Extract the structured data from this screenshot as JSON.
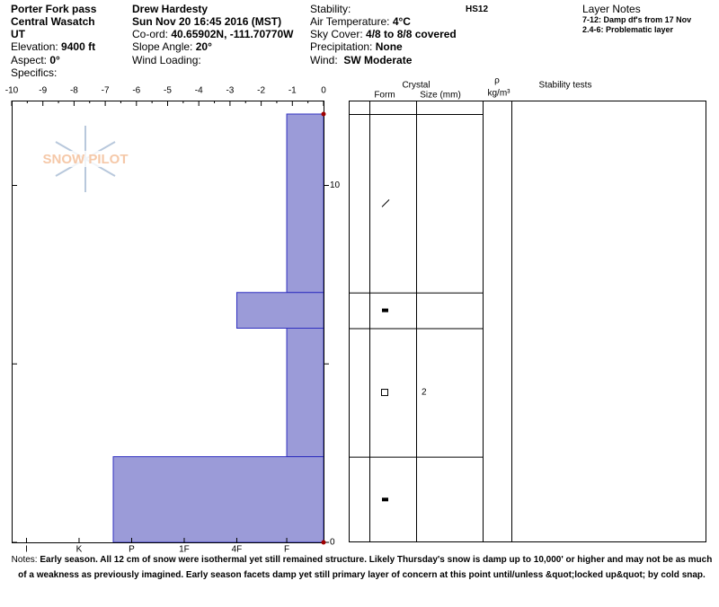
{
  "header": {
    "location": "Porter Fork pass",
    "range": "Central Wasatch",
    "state": "UT",
    "elevation_label": "Elevation:",
    "elevation": "9400 ft",
    "aspect_label": "Aspect:",
    "aspect": "0°",
    "specifics_label": "Specifics:",
    "observer": "Drew Hardesty",
    "date": "Sun Nov 20 16:45 2016 (MST)",
    "coord_label": "Co-ord:",
    "coord": "40.65902N, -111.70770W",
    "slope_label": "Slope Angle:",
    "slope": "20°",
    "wind_loading_label": "Wind Loading:",
    "stability_label": "Stability:",
    "air_temp_label": "Air Temperature:",
    "air_temp": "4°C",
    "sky_label": "Sky Cover:",
    "sky": "4/8 to 8/8 covered",
    "precip_label": "Precipitation:",
    "precip": "None",
    "wind_label": "Wind:",
    "wind": "SW Moderate",
    "hs": "HS12",
    "layer_notes_title": "Layer Notes",
    "layer_notes": [
      "7-12: Damp df's from 17 Nov",
      "2.4-6: Problematic layer"
    ]
  },
  "chart_data": {
    "type": "snow_profile",
    "logo": "SNOW PILOT",
    "xlim": [
      -10,
      0
    ],
    "xticks": [
      -10,
      -9,
      -8,
      -7,
      -6,
      -5,
      -4,
      -3,
      -2,
      -1,
      0
    ],
    "ylim": [
      0,
      12
    ],
    "yticks": [
      0,
      10
    ],
    "minor_yticks": [
      5
    ],
    "hardness_lim": [
      0,
      6
    ],
    "hardness_ticks": [
      {
        "value": 5.65,
        "label": "I"
      },
      {
        "value": 4.65,
        "label": "K"
      },
      {
        "value": 3.65,
        "label": "P"
      },
      {
        "value": 2.65,
        "label": "1F"
      },
      {
        "value": 1.65,
        "label": "4F"
      },
      {
        "value": 0.7,
        "label": "F"
      }
    ],
    "color": "#9b9bd8",
    "layers": [
      {
        "top": 12,
        "bottom": 7,
        "hardness": 0.7
      },
      {
        "top": 7,
        "bottom": 6,
        "hardness": 1.65
      },
      {
        "top": 6,
        "bottom": 2.4,
        "hardness": 0.7,
        "size": 2
      },
      {
        "top": 2.4,
        "bottom": 0,
        "hardness": 4.0
      }
    ],
    "table_headers": {
      "crystal": "Crystal",
      "form": "Form",
      "size": "Size (mm)",
      "rho": "ρ",
      "density": "kg/m³",
      "stability": "Stability tests"
    }
  },
  "notes": {
    "label": "Notes:",
    "text": "Early season.  All 12 cm of snow were isothermal yet still remained structure.  Likely Thursday's snow is damp up to 10,000' or higher and may not be as much of a weakness as previously imagined.  Early season facets damp yet still primary layer of concern at this point until/unless &quot;locked up&quot; by cold snap."
  }
}
